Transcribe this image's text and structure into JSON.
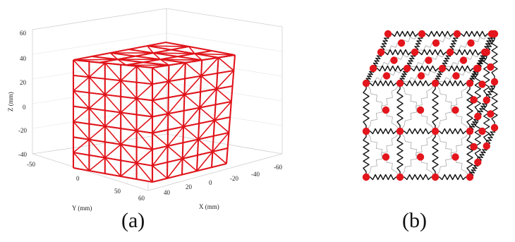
{
  "panel_a": {
    "z_axis_label": "Z (mm)",
    "x_axis_label": "X (mm)",
    "y_axis_label": "Y (mm)",
    "z_ticks": [
      "60",
      "40",
      "20",
      "0",
      "-20",
      "-40"
    ],
    "x_ticks": [
      "40",
      "20",
      "0",
      "-20",
      "-40",
      "-60"
    ],
    "y_ticks": [
      "-50",
      "0",
      "50",
      "60"
    ],
    "mesh_color": "#e0141b",
    "grid_color": "#cfcfcf"
  },
  "panel_b": {
    "node_color": "#e4151c",
    "spring_color": "#111111",
    "inner_spring_color": "#a8a8a8"
  },
  "captions": {
    "a": "(a)",
    "b": "(b)"
  }
}
